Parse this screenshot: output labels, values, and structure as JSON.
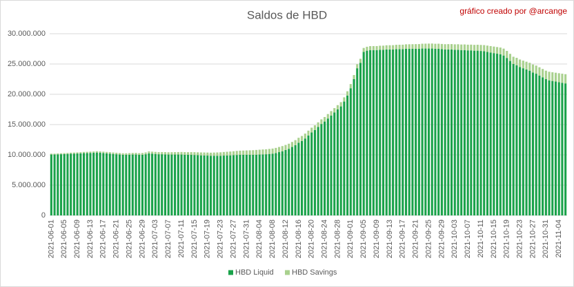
{
  "chart_data": {
    "type": "stacked_bar",
    "title": "Saldos de HBD",
    "annotation": "gráfico creado por @arcange",
    "categories": [
      "2021-06-01",
      null,
      null,
      null,
      "2021-06-05",
      null,
      null,
      null,
      "2021-06-09",
      null,
      null,
      null,
      "2021-06-13",
      null,
      null,
      null,
      "2021-06-17",
      null,
      null,
      null,
      "2021-06-21",
      null,
      null,
      null,
      "2021-06-25",
      null,
      null,
      null,
      "2021-06-29",
      null,
      null,
      null,
      "2021-07-03",
      null,
      null,
      null,
      "2021-07-07",
      null,
      null,
      null,
      "2021-07-11",
      null,
      null,
      null,
      "2021-07-15",
      null,
      null,
      null,
      "2021-07-19",
      null,
      null,
      null,
      "2021-07-23",
      null,
      null,
      null,
      "2021-07-27",
      null,
      null,
      null,
      "2021-07-31",
      null,
      null,
      null,
      "2021-08-04",
      null,
      null,
      null,
      "2021-08-08",
      null,
      null,
      null,
      "2021-08-12",
      null,
      null,
      null,
      "2021-08-16",
      null,
      null,
      null,
      "2021-08-20",
      null,
      null,
      null,
      "2021-08-24",
      null,
      null,
      null,
      "2021-08-28",
      null,
      null,
      null,
      "2021-09-01",
      null,
      null,
      null,
      "2021-09-05",
      null,
      null,
      null,
      "2021-09-09",
      null,
      null,
      null,
      "2021-09-13",
      null,
      null,
      null,
      "2021-09-17",
      null,
      null,
      null,
      "2021-09-21",
      null,
      null,
      null,
      "2021-09-25",
      null,
      null,
      null,
      "2021-09-29",
      null,
      null,
      null,
      "2021-10-03",
      null,
      null,
      null,
      "2021-10-07",
      null,
      null,
      null,
      "2021-10-11",
      null,
      null,
      null,
      "2021-10-15",
      null,
      null,
      null,
      "2021-10-19",
      null,
      null,
      null,
      "2021-10-23",
      null,
      null,
      null,
      "2021-10-27",
      null,
      null,
      null,
      "2021-10-31",
      null,
      null,
      null,
      "2021-11-04",
      null,
      null
    ],
    "series": [
      {
        "name": "HBD Liquid",
        "color": "#1aa24a",
        "values": [
          10050000,
          10050000,
          10080000,
          10100000,
          10120000,
          10150000,
          10180000,
          10200000,
          10220000,
          10250000,
          10280000,
          10300000,
          10320000,
          10350000,
          10380000,
          10350000,
          10300000,
          10250000,
          10200000,
          10150000,
          10100000,
          10050000,
          10000000,
          10000000,
          10020000,
          10050000,
          10050000,
          10000000,
          10020000,
          10100000,
          10250000,
          10200000,
          10150000,
          10100000,
          10100000,
          10080000,
          10050000,
          10050000,
          10050000,
          10050000,
          10050000,
          10020000,
          10000000,
          10000000,
          9980000,
          9950000,
          9920000,
          9900000,
          9880000,
          9850000,
          9850000,
          9850000,
          9850000,
          9880000,
          9900000,
          9920000,
          9950000,
          9980000,
          10000000,
          10000000,
          10000000,
          10000000,
          10000000,
          10020000,
          10050000,
          10080000,
          10100000,
          10150000,
          10200000,
          10300000,
          10450000,
          10600000,
          10800000,
          11000000,
          11300000,
          11600000,
          12000000,
          12300000,
          12700000,
          13200000,
          13700000,
          14100000,
          14600000,
          15100000,
          15500000,
          16000000,
          16500000,
          17000000,
          17500000,
          18000000,
          18800000,
          19800000,
          21000000,
          22500000,
          24300000,
          25200000,
          27000000,
          27200000,
          27300000,
          27300000,
          27300000,
          27350000,
          27350000,
          27400000,
          27400000,
          27400000,
          27450000,
          27450000,
          27450000,
          27500000,
          27500000,
          27500000,
          27500000,
          27500000,
          27550000,
          27550000,
          27550000,
          27550000,
          27500000,
          27500000,
          27450000,
          27400000,
          27400000,
          27400000,
          27350000,
          27350000,
          27300000,
          27300000,
          27250000,
          27250000,
          27200000,
          27200000,
          27150000,
          27100000,
          27000000,
          26900000,
          26800000,
          26700000,
          26600000,
          26400000,
          26000000,
          25500000,
          25000000,
          24800000,
          24500000,
          24300000,
          24100000,
          23900000,
          23600000,
          23400000,
          23100000,
          22800000,
          22500000,
          22300000,
          22200000,
          22100000,
          22000000,
          21900000,
          21800000
        ]
      },
      {
        "name": "HBD Savings",
        "color": "#a9d18e",
        "values": [
          150000,
          150000,
          160000,
          160000,
          170000,
          170000,
          180000,
          180000,
          190000,
          190000,
          200000,
          200000,
          210000,
          210000,
          220000,
          220000,
          230000,
          230000,
          240000,
          240000,
          250000,
          250000,
          260000,
          260000,
          270000,
          270000,
          280000,
          280000,
          290000,
          300000,
          320000,
          330000,
          340000,
          350000,
          360000,
          370000,
          380000,
          390000,
          400000,
          410000,
          420000,
          430000,
          440000,
          450000,
          460000,
          470000,
          480000,
          490000,
          500000,
          510000,
          530000,
          550000,
          570000,
          590000,
          610000,
          630000,
          650000,
          670000,
          690000,
          710000,
          730000,
          750000,
          770000,
          790000,
          800000,
          810000,
          820000,
          830000,
          840000,
          850000,
          850000,
          850000,
          840000,
          840000,
          830000,
          830000,
          820000,
          820000,
          810000,
          800000,
          790000,
          780000,
          770000,
          760000,
          750000,
          740000,
          730000,
          720000,
          710000,
          700000,
          700000,
          700000,
          690000,
          680000,
          670000,
          660000,
          650000,
          650000,
          650000,
          660000,
          660000,
          670000,
          680000,
          690000,
          700000,
          710000,
          720000,
          730000,
          740000,
          750000,
          760000,
          770000,
          780000,
          790000,
          800000,
          810000,
          820000,
          830000,
          840000,
          850000,
          860000,
          870000,
          880000,
          890000,
          900000,
          910000,
          920000,
          930000,
          940000,
          950000,
          960000,
          980000,
          1000000,
          1020000,
          1040000,
          1060000,
          1080000,
          1100000,
          1120000,
          1140000,
          1160000,
          1180000,
          1200000,
          1220000,
          1240000,
          1260000,
          1280000,
          1300000,
          1320000,
          1340000,
          1360000,
          1380000,
          1400000,
          1420000,
          1440000,
          1460000,
          1480000,
          1500000,
          1520000
        ]
      }
    ],
    "ylim": [
      0,
      30000000
    ],
    "yticks": [
      0,
      {
        "value": 5000000,
        "label": "5.000.000"
      },
      {
        "value": 10000000,
        "label": "10.000.000"
      },
      {
        "value": 15000000,
        "label": "15.000.000"
      },
      {
        "value": 20000000,
        "label": "20.000.000"
      },
      {
        "value": 25000000,
        "label": "25.000.000"
      },
      {
        "value": 30000000,
        "label": "30.000.000"
      }
    ],
    "grid": true,
    "legend": "bottom"
  }
}
